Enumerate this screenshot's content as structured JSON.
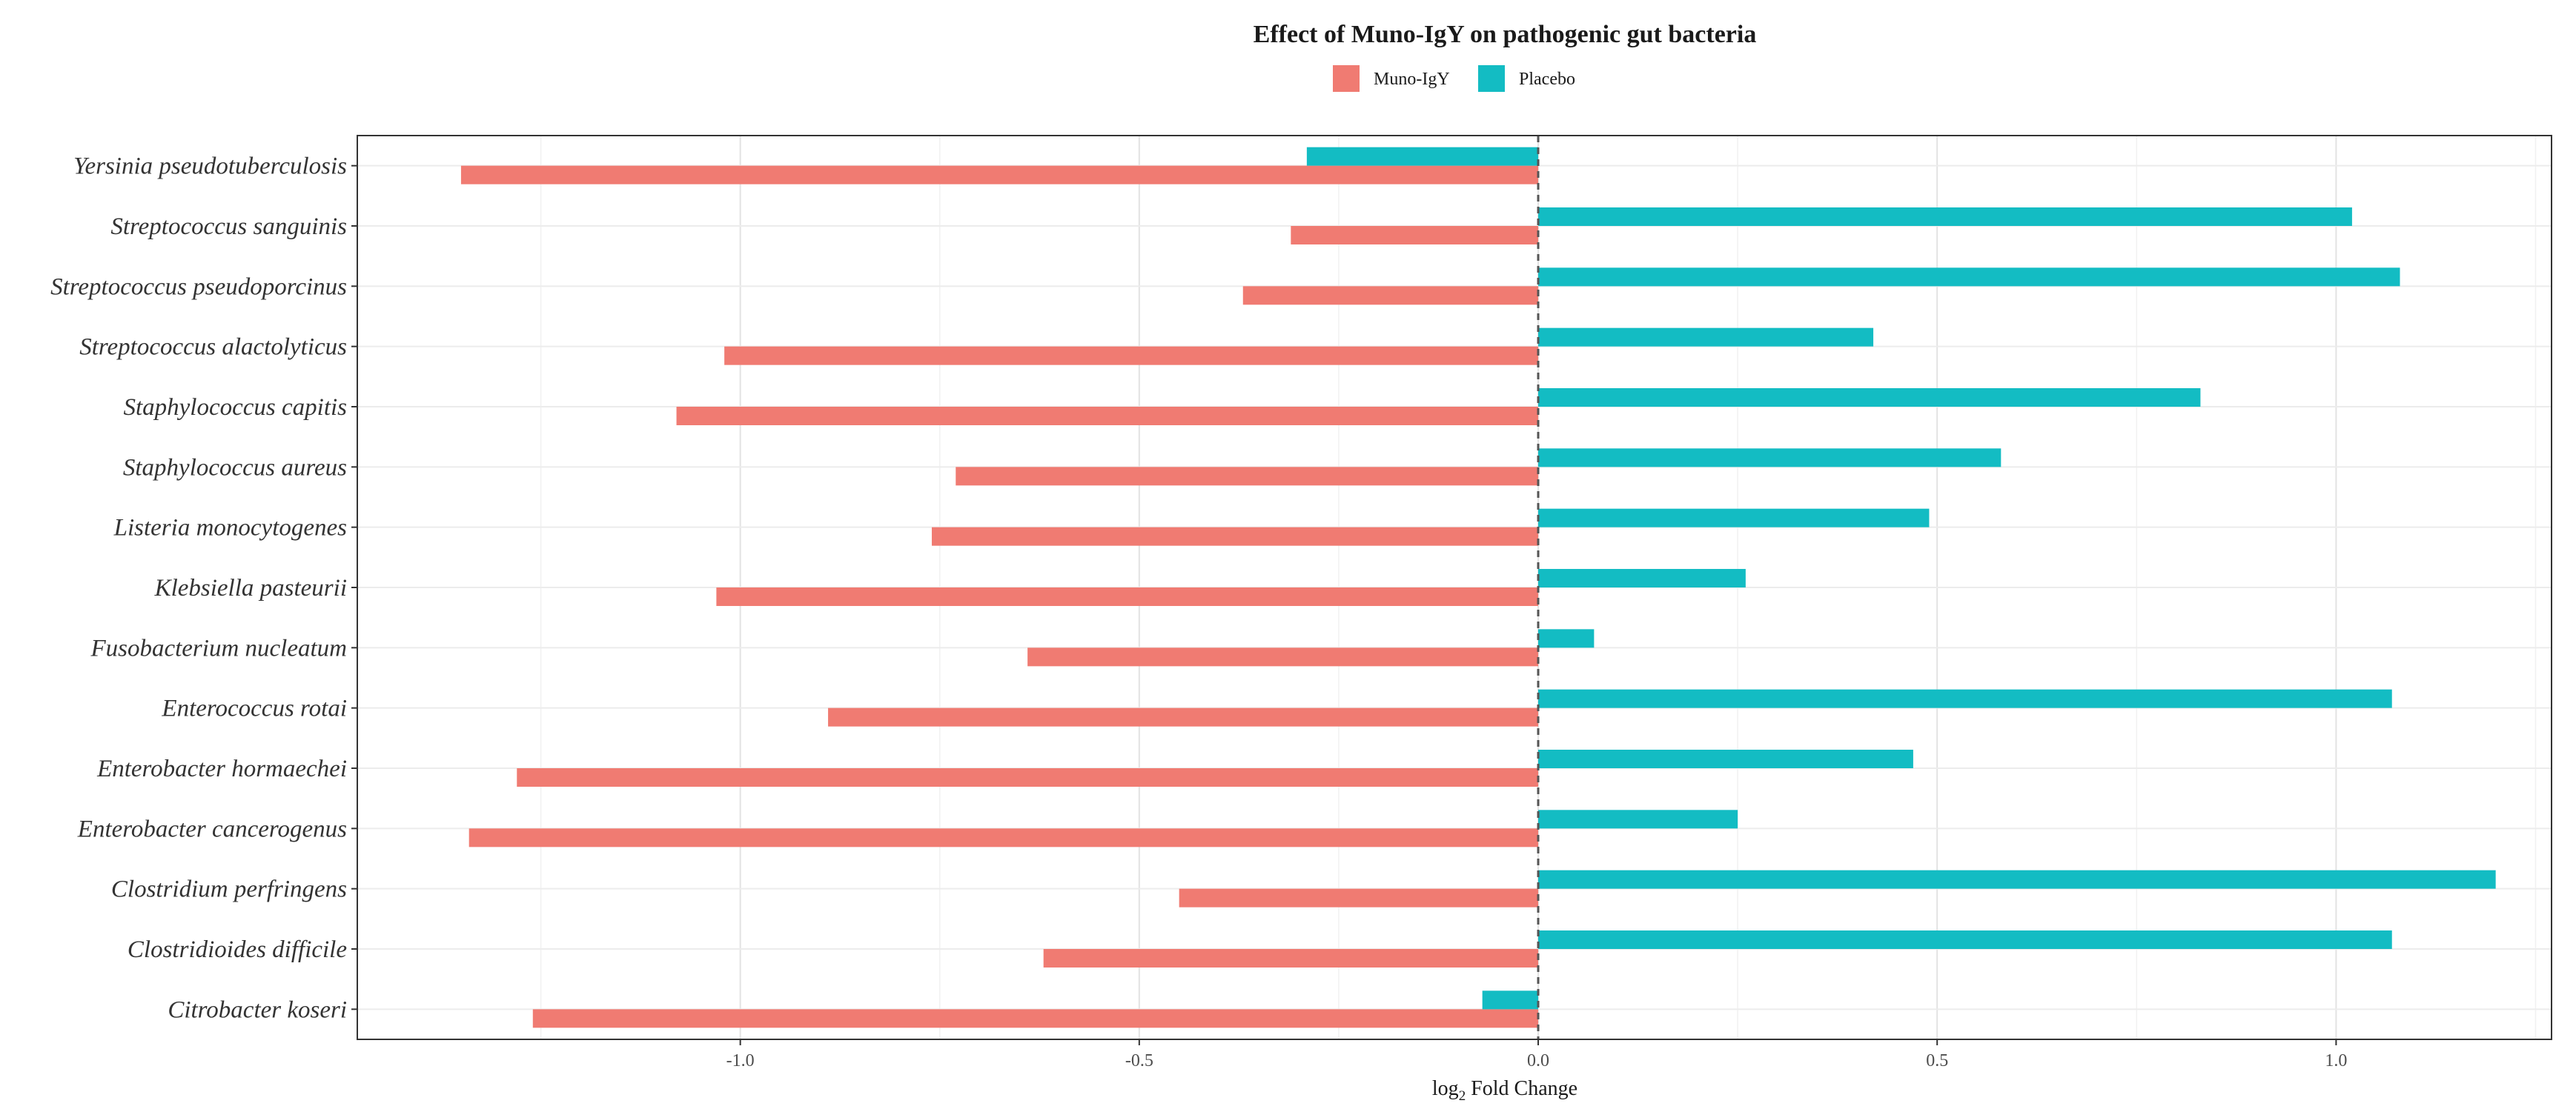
{
  "chart_data": {
    "type": "bar",
    "orientation": "horizontal",
    "title": "Effect of Muno-IgY on pathogenic gut bacteria",
    "xlabel_prefix": "log",
    "xlabel_sub": "2",
    "xlabel_suffix": " Fold Change",
    "ylabel": "",
    "xlim": [
      -1.48,
      1.27
    ],
    "xticks": [
      -1.0,
      -0.5,
      0.0,
      0.5,
      1.0
    ],
    "xtick_labels": [
      "-1.0",
      "-0.5",
      "0.0",
      "0.5",
      "1.0"
    ],
    "grid": true,
    "zero_line": "dashed",
    "legend_position": "top-center",
    "categories": [
      "Yersinia pseudotuberculosis",
      "Streptococcus sanguinis",
      "Streptococcus pseudoporcinus",
      "Streptococcus alactolyticus",
      "Staphylococcus capitis",
      "Staphylococcus aureus",
      "Listeria monocytogenes",
      "Klebsiella pasteurii",
      "Fusobacterium nucleatum",
      "Enterococcus rotai",
      "Enterobacter hormaechei",
      "Enterobacter cancerogenus",
      "Clostridium perfringens",
      "Clostridioides difficile",
      "Citrobacter koseri"
    ],
    "series": [
      {
        "name": "Muno-IgY",
        "color": "#f07b72",
        "values": [
          -1.35,
          -0.31,
          -0.37,
          -1.02,
          -1.08,
          -0.73,
          -0.76,
          -1.03,
          -0.64,
          -0.89,
          -1.28,
          -1.34,
          -0.45,
          -0.62,
          -1.26
        ]
      },
      {
        "name": "Placebo",
        "color": "#13bcc3",
        "values": [
          -0.29,
          1.02,
          1.08,
          0.42,
          0.83,
          0.58,
          0.49,
          0.26,
          0.07,
          1.07,
          0.47,
          0.25,
          1.2,
          1.07,
          -0.07
        ]
      }
    ]
  }
}
